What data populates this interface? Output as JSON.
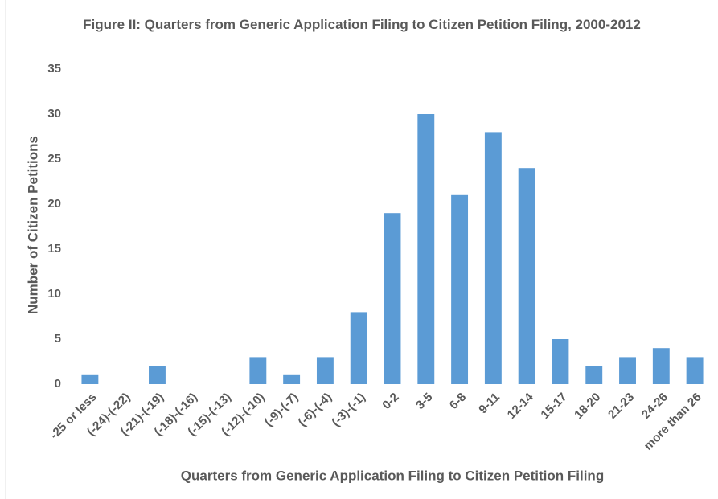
{
  "chart_data": {
    "type": "bar",
    "title": "Figure II: Quarters from Generic Application Filing to Citizen Petition Filing, 2000-2012",
    "x_label": "Quarters from Generic Application Filing to Citizen Petition Filing",
    "y_label": "Number of Citizen Petitions",
    "categories": [
      "-25 or less",
      "(-24)-(-22)",
      "(-21)-(-19)",
      "(-18)-(-16)",
      "(-15)-(-13)",
      "(-12)-(-10)",
      "(-9)-(-7)",
      "(-6)-(-4)",
      "(-3)-(-1)",
      "0-2",
      "3-5",
      "6-8",
      "9-11",
      "12-14",
      "15-17",
      "18-20",
      "21-23",
      "24-26",
      "more than 26"
    ],
    "values": [
      1,
      0,
      2,
      0,
      0,
      3,
      1,
      3,
      8,
      19,
      30,
      21,
      28,
      24,
      5,
      2,
      3,
      4,
      3
    ],
    "color": "#5b9bd5",
    "ylim": [
      0,
      35
    ],
    "yticks": [
      0,
      5,
      10,
      15,
      20,
      25,
      30,
      35
    ],
    "grid": false
  }
}
